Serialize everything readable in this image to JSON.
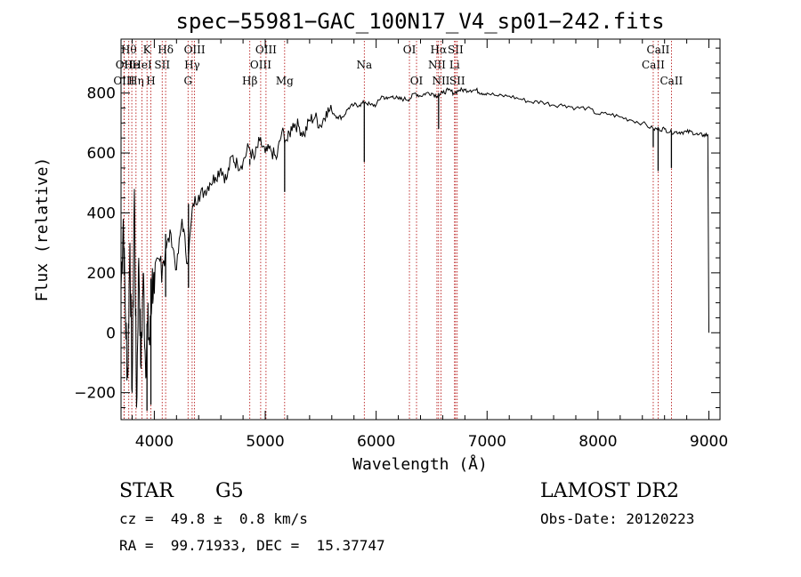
{
  "chart_data": {
    "type": "line",
    "title": "spec−55981−GAC_100N17_V4_sp01−242.fits",
    "xlabel": "Wavelength (Å)",
    "ylabel": "Flux (relative)",
    "xlim": [
      3700,
      9100
    ],
    "ylim": [
      -290,
      980
    ],
    "xticks": [
      4000,
      5000,
      6000,
      7000,
      8000,
      9000
    ],
    "yticks": [
      -200,
      0,
      200,
      400,
      600,
      800
    ],
    "tick_labels_y": [
      "−200",
      "0",
      "200",
      "400",
      "600",
      "800"
    ],
    "series": [
      {
        "color": "#000000",
        "x": [
          3700,
          3720,
          3740,
          3760,
          3780,
          3800,
          3820,
          3840,
          3860,
          3880,
          3900,
          3920,
          3940,
          3960,
          3980,
          4000,
          4050,
          4100,
          4150,
          4200,
          4250,
          4300,
          4350,
          4400,
          4450,
          4500,
          4550,
          4600,
          4650,
          4700,
          4750,
          4800,
          4850,
          4900,
          4950,
          5000,
          5050,
          5100,
          5150,
          5200,
          5250,
          5300,
          5350,
          5400,
          5450,
          5500,
          5550,
          5600,
          5650,
          5700,
          5750,
          5800,
          5850,
          5900,
          5950,
          6000,
          6050,
          6100,
          6150,
          6200,
          6250,
          6300,
          6350,
          6400,
          6450,
          6500,
          6550,
          6600,
          6650,
          6700,
          6750,
          6800,
          6850,
          6900,
          6950,
          7000,
          7100,
          7200,
          7300,
          7400,
          7500,
          7600,
          7700,
          7800,
          7900,
          8000,
          8100,
          8200,
          8300,
          8400,
          8500,
          8550,
          8600,
          8650,
          8700,
          8750,
          8800,
          8850,
          8900,
          8950,
          8990,
          9000
        ],
        "y": [
          150,
          380,
          50,
          -150,
          300,
          -200,
          480,
          -250,
          250,
          -120,
          200,
          -100,
          30,
          -40,
          180,
          130,
          240,
          280,
          330,
          210,
          380,
          230,
          430,
          460,
          470,
          500,
          520,
          550,
          510,
          590,
          560,
          570,
          620,
          580,
          640,
          600,
          610,
          580,
          670,
          640,
          700,
          690,
          660,
          710,
          720,
          690,
          740,
          740,
          720,
          720,
          750,
          760,
          760,
          770,
          760,
          760,
          790,
          780,
          790,
          780,
          780,
          780,
          800,
          790,
          800,
          800,
          790,
          800,
          810,
          800,
          810,
          810,
          810,
          810,
          800,
          800,
          790,
          790,
          780,
          770,
          770,
          760,
          760,
          750,
          750,
          730,
          730,
          720,
          710,
          700,
          680,
          680,
          680,
          670,
          670,
          670,
          670,
          670,
          660,
          660,
          660,
          0
        ]
      }
    ],
    "absorption_dips": [
      {
        "x": 3934,
        "y": -260
      },
      {
        "x": 3969,
        "y": -240
      },
      {
        "x": 4102,
        "y": 120
      },
      {
        "x": 4308,
        "y": 150
      },
      {
        "x": 4861,
        "y": 560
      },
      {
        "x": 5175,
        "y": 470
      },
      {
        "x": 5893,
        "y": 570
      },
      {
        "x": 6563,
        "y": 680
      },
      {
        "x": 8498,
        "y": 620
      },
      {
        "x": 8542,
        "y": 540
      },
      {
        "x": 8662,
        "y": 550
      }
    ],
    "line_markers": [
      {
        "x": 3727,
        "label": "OII",
        "row": 1
      },
      {
        "x": 3727,
        "label": "OIII",
        "row": 2
      },
      {
        "x": 3770,
        "label": "Hθ",
        "row": 0
      },
      {
        "x": 3797,
        "label": "He",
        "row": 1
      },
      {
        "x": 3835,
        "label": "Hη",
        "row": 2
      },
      {
        "x": 3889,
        "label": "HeI",
        "row": 1
      },
      {
        "x": 3934,
        "label": "K",
        "row": 0
      },
      {
        "x": 3969,
        "label": "H",
        "row": 2
      },
      {
        "x": 4071,
        "label": "SII",
        "row": 1
      },
      {
        "x": 4102,
        "label": "Hδ",
        "row": 0
      },
      {
        "x": 4304,
        "label": "G",
        "row": 2
      },
      {
        "x": 4341,
        "label": "Hγ",
        "row": 1
      },
      {
        "x": 4363,
        "label": "OIII",
        "row": 0
      },
      {
        "x": 4861,
        "label": "Hβ",
        "row": 2
      },
      {
        "x": 4959,
        "label": "OIII",
        "row": 1
      },
      {
        "x": 5007,
        "label": "OIII",
        "row": 0
      },
      {
        "x": 5175,
        "label": "Mg",
        "row": 2
      },
      {
        "x": 5893,
        "label": "Na",
        "row": 1
      },
      {
        "x": 6300,
        "label": "OI",
        "row": 0
      },
      {
        "x": 6364,
        "label": "OI",
        "row": 2
      },
      {
        "x": 6548,
        "label": "NII",
        "row": 1
      },
      {
        "x": 6563,
        "label": "Hα",
        "row": 0
      },
      {
        "x": 6584,
        "label": "NII",
        "row": 2
      },
      {
        "x": 6707,
        "label": "Li",
        "row": 1
      },
      {
        "x": 6716,
        "label": "SII",
        "row": 0
      },
      {
        "x": 6731,
        "label": "SII",
        "row": 2
      },
      {
        "x": 8498,
        "label": "CaII",
        "row": 1
      },
      {
        "x": 8542,
        "label": "CaII",
        "row": 0
      },
      {
        "x": 8662,
        "label": "CaII",
        "row": 2
      }
    ]
  },
  "info": {
    "object_class": "STAR",
    "subclass": "G5",
    "survey": "LAMOST DR2",
    "redshift": "cz =  49.8 ±  0.8 km/s",
    "obs_date": "Obs-Date: 20120223",
    "coords": "RA =  99.71933, DEC =  15.37747"
  }
}
